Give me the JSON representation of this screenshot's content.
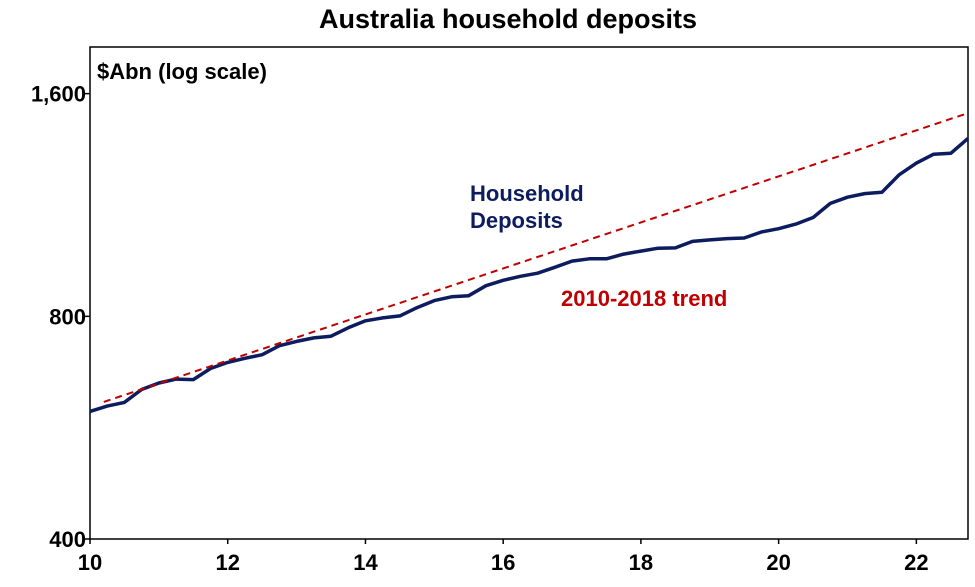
{
  "chart_data": {
    "type": "line",
    "title": "Australia household deposits",
    "unit_label": "$Abn (log scale)",
    "y_scale": "log",
    "ylim": [
      400,
      1850
    ],
    "xlim": [
      10,
      22.75
    ],
    "x_ticks": [
      10,
      12,
      14,
      16,
      18,
      20,
      22
    ],
    "y_ticks": [
      {
        "value": 400,
        "label": "400"
      },
      {
        "value": 800,
        "label": "800"
      },
      {
        "value": 1600,
        "label": "1,600"
      }
    ],
    "grid": false,
    "colors": {
      "deposits": "#0d1c5e",
      "trend": "#c00000"
    },
    "series": [
      {
        "name": "Household Deposits",
        "label_lines": [
          "Household",
          "Deposits"
        ],
        "style": "solid",
        "x": [
          10.0,
          10.25,
          10.5,
          10.75,
          11.0,
          11.25,
          11.5,
          11.75,
          12.0,
          12.25,
          12.5,
          12.75,
          13.0,
          13.25,
          13.5,
          13.75,
          14.0,
          14.25,
          14.5,
          14.75,
          15.0,
          15.25,
          15.5,
          15.75,
          16.0,
          16.25,
          16.5,
          16.75,
          17.0,
          17.25,
          17.5,
          17.75,
          18.0,
          18.25,
          18.5,
          18.75,
          19.0,
          19.25,
          19.5,
          19.75,
          20.0,
          20.25,
          20.5,
          20.75,
          21.0,
          21.25,
          21.5,
          21.75,
          22.0,
          22.25,
          22.5,
          22.75
        ],
        "values": [
          595,
          605,
          612,
          637,
          650,
          658,
          657,
          680,
          693,
          702,
          710,
          730,
          740,
          748,
          752,
          772,
          789,
          796,
          801,
          822,
          840,
          850,
          853,
          880,
          895,
          906,
          915,
          932,
          950,
          957,
          957,
          971,
          980,
          989,
          990,
          1010,
          1015,
          1019,
          1021,
          1040,
          1051,
          1066,
          1088,
          1137,
          1159,
          1172,
          1177,
          1243,
          1289,
          1325,
          1329,
          1392
        ]
      },
      {
        "name": "2010-2018 trend",
        "label_lines": [
          "2010-2018 trend"
        ],
        "style": "dashed",
        "x": [
          10.2,
          22.75
        ],
        "values": [
          613,
          1506
        ]
      }
    ]
  }
}
